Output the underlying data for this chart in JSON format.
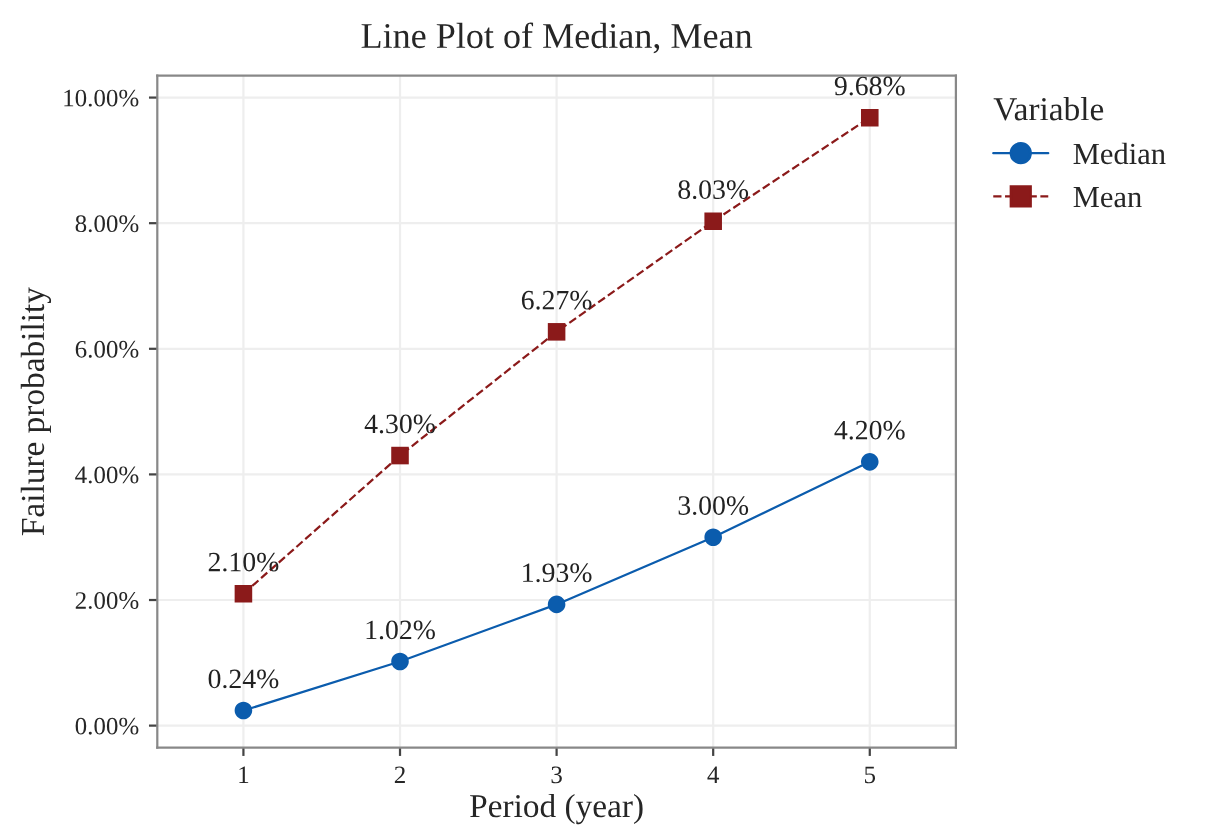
{
  "chart_data": {
    "type": "line",
    "title": "Line Plot of Median, Mean",
    "xlabel": "Period (year)",
    "ylabel": "Failure probability",
    "legend_title": "Variable",
    "legend": "right",
    "grid": true,
    "x": [
      1,
      2,
      3,
      4,
      5
    ],
    "xlim": [
      0.45,
      5.55
    ],
    "xticks": [
      1,
      2,
      3,
      4,
      5
    ],
    "ylim": [
      -0.35,
      10.35
    ],
    "yticks": [
      {
        "value": 0,
        "label": "0.00%"
      },
      {
        "value": 2,
        "label": "2.00%"
      },
      {
        "value": 4,
        "label": "4.00%"
      },
      {
        "value": 6,
        "label": "6.00%"
      },
      {
        "value": 8,
        "label": "8.00%"
      },
      {
        "value": 10,
        "label": "10.00%"
      }
    ],
    "series": [
      {
        "name": "Median",
        "color": "#0b5cad",
        "marker": "circle",
        "line_style": "solid",
        "values": [
          0.24,
          1.02,
          1.93,
          3.0,
          4.2
        ],
        "value_labels": [
          "0.24%",
          "1.02%",
          "1.93%",
          "3.00%",
          "4.20%"
        ]
      },
      {
        "name": "Mean",
        "color": "#8b1a1a",
        "marker": "square",
        "line_style": "dashed",
        "values": [
          2.1,
          4.3,
          6.27,
          8.03,
          9.68
        ],
        "value_labels": [
          "2.10%",
          "4.30%",
          "6.27%",
          "8.03%",
          "9.68%"
        ]
      }
    ]
  }
}
